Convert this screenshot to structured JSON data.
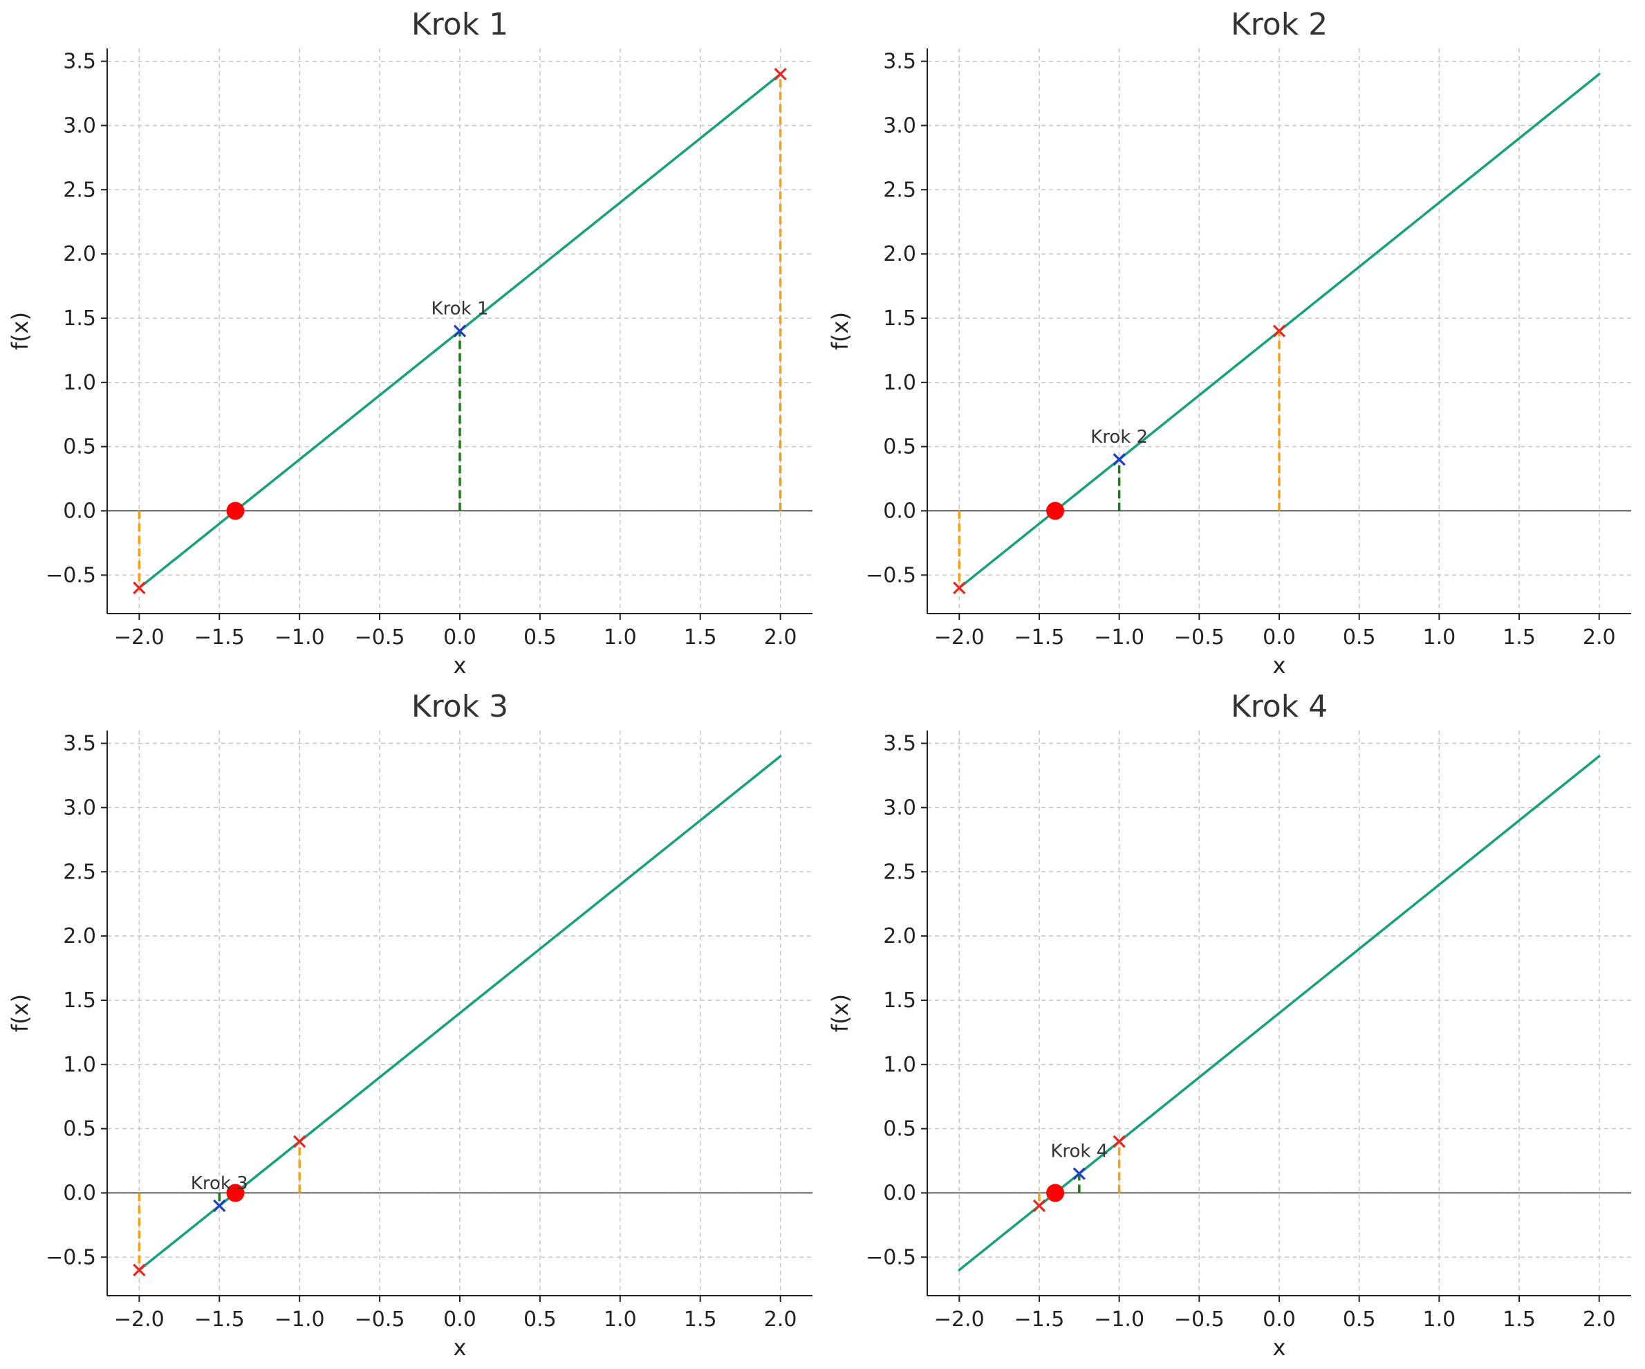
{
  "chart_data": [
    {
      "type": "line",
      "title": "Krok 1",
      "xlabel": "x",
      "ylabel": "f(x)",
      "xlim": [
        -2.2,
        2.2
      ],
      "ylim": [
        -0.8,
        3.6
      ],
      "xticks": [
        -2.0,
        -1.5,
        -1.0,
        -0.5,
        0.0,
        0.5,
        1.0,
        1.5,
        2.0
      ],
      "yticks": [
        -0.5,
        0.0,
        0.5,
        1.0,
        1.5,
        2.0,
        2.5,
        3.0,
        3.5
      ],
      "xtick_labels": [
        "−2.0",
        "−1.5",
        "−1.0",
        "−0.5",
        "0.0",
        "0.5",
        "1.0",
        "1.5",
        "2.0"
      ],
      "ytick_labels": [
        "−0.5",
        "0.0",
        "0.5",
        "1.0",
        "1.5",
        "2.0",
        "2.5",
        "3.0",
        "3.5"
      ],
      "grid": true,
      "function_line": {
        "x": [
          -2.0,
          2.0
        ],
        "y": [
          -0.6,
          3.4
        ],
        "color": "#17a17a"
      },
      "root": {
        "x": -1.4,
        "y": 0.0,
        "color": "#ff0000"
      },
      "endpoints": [
        {
          "x": -2.0,
          "y": -0.6
        },
        {
          "x": 2.0,
          "y": 3.4
        }
      ],
      "endpoint_color": "#e8281e",
      "endpoint_line_color": "#f5a21a",
      "midpoint": {
        "x": 0.0,
        "y": 1.4,
        "label": "Krok 1"
      },
      "midpoint_color": "#1f3fbf",
      "midpoint_line_color": "#1a7d1a"
    },
    {
      "type": "line",
      "title": "Krok 2",
      "xlabel": "x",
      "ylabel": "f(x)",
      "xlim": [
        -2.2,
        2.2
      ],
      "ylim": [
        -0.8,
        3.6
      ],
      "xticks": [
        -2.0,
        -1.5,
        -1.0,
        -0.5,
        0.0,
        0.5,
        1.0,
        1.5,
        2.0
      ],
      "yticks": [
        -0.5,
        0.0,
        0.5,
        1.0,
        1.5,
        2.0,
        2.5,
        3.0,
        3.5
      ],
      "xtick_labels": [
        "−2.0",
        "−1.5",
        "−1.0",
        "−0.5",
        "0.0",
        "0.5",
        "1.0",
        "1.5",
        "2.0"
      ],
      "ytick_labels": [
        "−0.5",
        "0.0",
        "0.5",
        "1.0",
        "1.5",
        "2.0",
        "2.5",
        "3.0",
        "3.5"
      ],
      "grid": true,
      "function_line": {
        "x": [
          -2.0,
          2.0
        ],
        "y": [
          -0.6,
          3.4
        ],
        "color": "#17a17a"
      },
      "root": {
        "x": -1.4,
        "y": 0.0,
        "color": "#ff0000"
      },
      "endpoints": [
        {
          "x": -2.0,
          "y": -0.6
        },
        {
          "x": 0.0,
          "y": 1.4
        }
      ],
      "endpoint_color": "#e8281e",
      "endpoint_line_color": "#f5a21a",
      "midpoint": {
        "x": -1.0,
        "y": 0.4,
        "label": "Krok 2"
      },
      "midpoint_color": "#1f3fbf",
      "midpoint_line_color": "#1a7d1a"
    },
    {
      "type": "line",
      "title": "Krok 3",
      "xlabel": "x",
      "ylabel": "f(x)",
      "xlim": [
        -2.2,
        2.2
      ],
      "ylim": [
        -0.8,
        3.6
      ],
      "xticks": [
        -2.0,
        -1.5,
        -1.0,
        -0.5,
        0.0,
        0.5,
        1.0,
        1.5,
        2.0
      ],
      "yticks": [
        -0.5,
        0.0,
        0.5,
        1.0,
        1.5,
        2.0,
        2.5,
        3.0,
        3.5
      ],
      "xtick_labels": [
        "−2.0",
        "−1.5",
        "−1.0",
        "−0.5",
        "0.0",
        "0.5",
        "1.0",
        "1.5",
        "2.0"
      ],
      "ytick_labels": [
        "−0.5",
        "0.0",
        "0.5",
        "1.0",
        "1.5",
        "2.0",
        "2.5",
        "3.0",
        "3.5"
      ],
      "grid": true,
      "function_line": {
        "x": [
          -2.0,
          2.0
        ],
        "y": [
          -0.6,
          3.4
        ],
        "color": "#17a17a"
      },
      "root": {
        "x": -1.4,
        "y": 0.0,
        "color": "#ff0000"
      },
      "endpoints": [
        {
          "x": -2.0,
          "y": -0.6
        },
        {
          "x": -1.0,
          "y": 0.4
        }
      ],
      "endpoint_color": "#e8281e",
      "endpoint_line_color": "#f5a21a",
      "midpoint": {
        "x": -1.5,
        "y": -0.1,
        "label": "Krok 3"
      },
      "midpoint_color": "#1f3fbf",
      "midpoint_line_color": "#1a7d1a"
    },
    {
      "type": "line",
      "title": "Krok 4",
      "xlabel": "x",
      "ylabel": "f(x)",
      "xlim": [
        -2.2,
        2.2
      ],
      "ylim": [
        -0.8,
        3.6
      ],
      "xticks": [
        -2.0,
        -1.5,
        -1.0,
        -0.5,
        0.0,
        0.5,
        1.0,
        1.5,
        2.0
      ],
      "yticks": [
        -0.5,
        0.0,
        0.5,
        1.0,
        1.5,
        2.0,
        2.5,
        3.0,
        3.5
      ],
      "xtick_labels": [
        "−2.0",
        "−1.5",
        "−1.0",
        "−0.5",
        "0.0",
        "0.5",
        "1.0",
        "1.5",
        "2.0"
      ],
      "ytick_labels": [
        "−0.5",
        "0.0",
        "0.5",
        "1.0",
        "1.5",
        "2.0",
        "2.5",
        "3.0",
        "3.5"
      ],
      "grid": true,
      "function_line": {
        "x": [
          -2.0,
          2.0
        ],
        "y": [
          -0.6,
          3.4
        ],
        "color": "#17a17a"
      },
      "root": {
        "x": -1.4,
        "y": 0.0,
        "color": "#ff0000"
      },
      "endpoints": [
        {
          "x": -1.5,
          "y": -0.1
        },
        {
          "x": -1.0,
          "y": 0.4
        }
      ],
      "endpoint_color": "#e8281e",
      "endpoint_line_color": "#f5a21a",
      "midpoint": {
        "x": -1.25,
        "y": 0.15,
        "label": "Krok 4"
      },
      "midpoint_color": "#1f3fbf",
      "midpoint_line_color": "#1a7d1a"
    }
  ]
}
